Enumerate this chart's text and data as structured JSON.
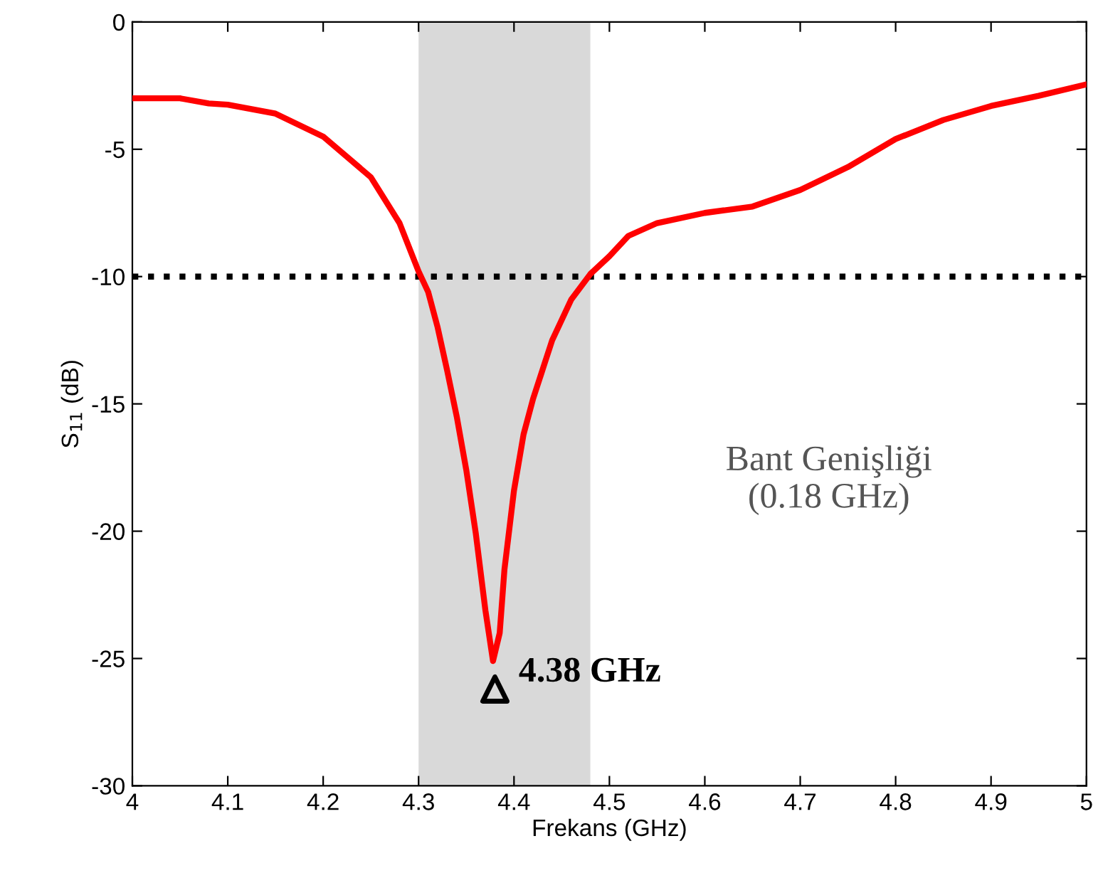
{
  "chart_data": {
    "type": "line",
    "xlabel": "Frekans (GHz)",
    "ylabel": "S$_{11}$ (dB)",
    "xlim": [
      4,
      5
    ],
    "ylim": [
      -30,
      0
    ],
    "xticks": [
      4,
      4.1,
      4.2,
      4.3,
      4.4,
      4.5,
      4.6,
      4.7,
      4.8,
      4.9,
      5
    ],
    "yticks": [
      -30,
      -25,
      -20,
      -15,
      -10,
      -5,
      0
    ],
    "grid": false,
    "legend": false,
    "series": [
      {
        "color": "#ff0000",
        "marker": "none",
        "line_style": "solid",
        "x": [
          4.0,
          4.05,
          4.08,
          4.1,
          4.15,
          4.2,
          4.25,
          4.28,
          4.3,
          4.31,
          4.32,
          4.33,
          4.34,
          4.35,
          4.36,
          4.37,
          4.378,
          4.385,
          4.39,
          4.4,
          4.41,
          4.42,
          4.44,
          4.46,
          4.48,
          4.5,
          4.52,
          4.55,
          4.6,
          4.65,
          4.7,
          4.75,
          4.8,
          4.85,
          4.9,
          4.95,
          5.0
        ],
        "values": [
          -3.0,
          -3.0,
          -3.2,
          -3.25,
          -3.6,
          -4.5,
          -6.1,
          -7.9,
          -9.8,
          -10.6,
          -12.0,
          -13.7,
          -15.5,
          -17.6,
          -20.1,
          -23.1,
          -25.1,
          -24.0,
          -21.5,
          -18.4,
          -16.2,
          -14.8,
          -12.5,
          -10.9,
          -9.9,
          -9.2,
          -8.4,
          -7.9,
          -7.5,
          -7.25,
          -6.6,
          -5.7,
          -4.6,
          -3.85,
          -3.3,
          -2.9,
          -2.45
        ]
      },
      {
        "type": "scatter",
        "color": "#000000",
        "marker": "triangle",
        "x": [
          4.38
        ],
        "values": [
          -26.2
        ]
      }
    ],
    "bands": [
      {
        "axis": "x",
        "from": 4.3,
        "to": 4.48,
        "color": "#d9d9d9"
      }
    ],
    "ref_lines": [
      {
        "axis": "y",
        "value": -10,
        "color": "#000000",
        "line_style": "dotted"
      }
    ],
    "annotations": [
      {
        "text": "4.38 GHz",
        "x": 4.38,
        "y": -26.2
      },
      "Bant Genişliği\n(0.18 GHz)"
    ]
  }
}
